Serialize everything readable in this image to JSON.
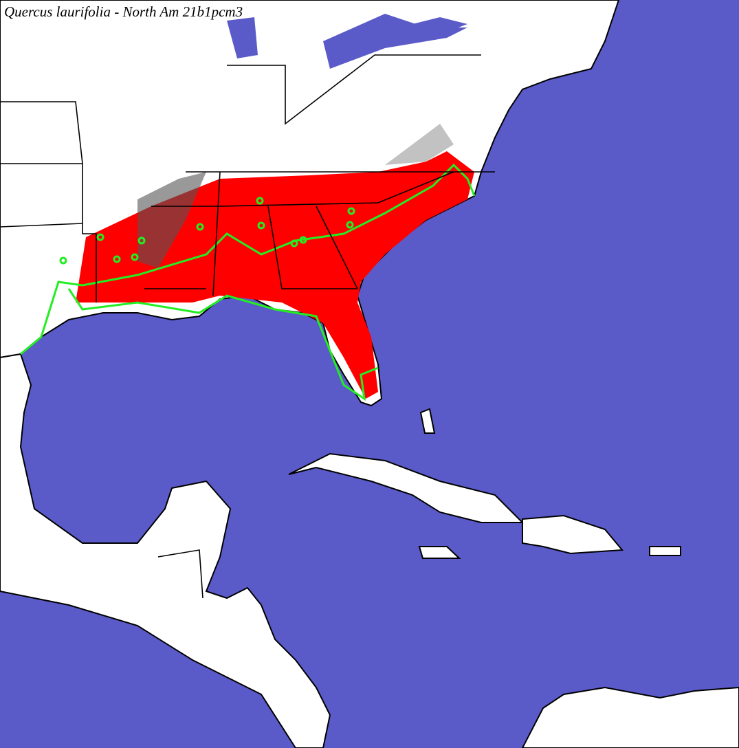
{
  "title": "Quercus laurifolia - North Am 21b1pcm3"
}
